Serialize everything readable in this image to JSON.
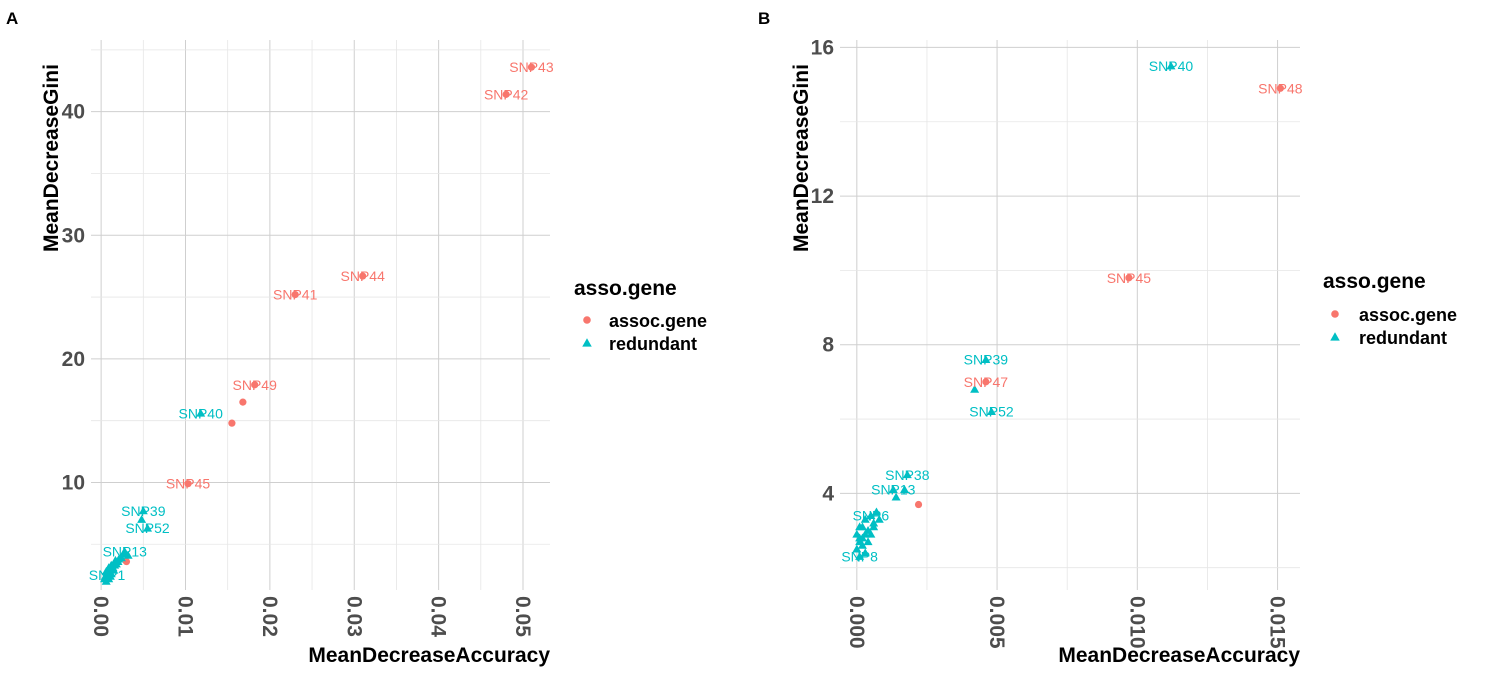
{
  "chart_data": [
    {
      "type": "scatter",
      "panel_tag": "A",
      "xlabel": "MeanDecreaseAccuracy",
      "ylabel": "MeanDecreaseGini",
      "xlim": [
        -0.0012,
        0.0532
      ],
      "ylim": [
        1.3,
        45.8
      ],
      "x_ticks": [
        0.0,
        0.01,
        0.02,
        0.03,
        0.04,
        0.05
      ],
      "x_tick_labels": [
        "0.00",
        "0.01",
        "0.02",
        "0.03",
        "0.04",
        "0.05"
      ],
      "y_ticks": [
        10,
        20,
        30,
        40
      ],
      "y_tick_labels": [
        "10",
        "20",
        "30",
        "40"
      ],
      "legend": {
        "title": "asso.gene",
        "entries": [
          {
            "label": "assoc.gene",
            "color": "#F8766D",
            "shape": "circle"
          },
          {
            "label": "redundant",
            "color": "#00BFC4",
            "shape": "triangle"
          }
        ]
      },
      "series": [
        {
          "name": "assoc.gene",
          "color": "#F8766D",
          "shape": "circle",
          "points": [
            {
              "x": 0.051,
              "y": 43.6,
              "label": "SNP43"
            },
            {
              "x": 0.048,
              "y": 41.4,
              "label": "SNP42"
            },
            {
              "x": 0.031,
              "y": 26.7,
              "label": "SNP44"
            },
            {
              "x": 0.023,
              "y": 25.2,
              "label": "SNP41"
            },
            {
              "x": 0.0182,
              "y": 17.9,
              "label": "SNP49"
            },
            {
              "x": 0.0168,
              "y": 16.5
            },
            {
              "x": 0.0155,
              "y": 14.8
            },
            {
              "x": 0.0103,
              "y": 9.9,
              "label": "SNP45"
            },
            {
              "x": 0.003,
              "y": 3.6
            },
            {
              "x": 0.001,
              "y": 2.8
            }
          ]
        },
        {
          "name": "redundant",
          "color": "#00BFC4",
          "shape": "triangle",
          "points": [
            {
              "x": 0.0118,
              "y": 15.6,
              "label": "SNP40"
            },
            {
              "x": 0.005,
              "y": 7.7,
              "label": "SNP39"
            },
            {
              "x": 0.0055,
              "y": 6.3,
              "label": "SNP52"
            },
            {
              "x": 0.0048,
              "y": 7.0
            },
            {
              "x": 0.0028,
              "y": 4.4,
              "label": "SNP13"
            },
            {
              "x": 0.0032,
              "y": 4.1
            },
            {
              "x": 0.0024,
              "y": 3.9
            },
            {
              "x": 0.002,
              "y": 3.6
            },
            {
              "x": 0.0016,
              "y": 3.3
            },
            {
              "x": 0.0014,
              "y": 3.1
            },
            {
              "x": 0.0013,
              "y": 3.0
            },
            {
              "x": 0.001,
              "y": 2.9
            },
            {
              "x": 0.0008,
              "y": 2.7
            },
            {
              "x": 0.0007,
              "y": 2.5,
              "label": "SNP1"
            },
            {
              "x": 0.0005,
              "y": 2.4
            },
            {
              "x": 0.0004,
              "y": 2.2
            },
            {
              "x": 0.0006,
              "y": 2.0
            },
            {
              "x": 0.0009,
              "y": 2.2
            },
            {
              "x": 0.0011,
              "y": 2.4
            },
            {
              "x": 0.0012,
              "y": 2.6
            },
            {
              "x": 0.0006,
              "y": 2.8
            },
            {
              "x": 0.0009,
              "y": 3.1
            },
            {
              "x": 0.0015,
              "y": 2.9
            },
            {
              "x": 0.0018,
              "y": 3.4
            },
            {
              "x": 0.0021,
              "y": 3.8
            },
            {
              "x": 0.0026,
              "y": 4.2
            },
            {
              "x": 0.0017,
              "y": 3.7
            },
            {
              "x": 0.0012,
              "y": 3.3
            }
          ]
        }
      ]
    },
    {
      "type": "scatter",
      "panel_tag": "B",
      "xlabel": "MeanDecreaseAccuracy",
      "ylabel": "MeanDecreaseGini",
      "xlim": [
        -0.0006,
        0.0158
      ],
      "ylim": [
        1.4,
        16.2
      ],
      "x_ticks": [
        0.0,
        0.005,
        0.01,
        0.015
      ],
      "x_tick_labels": [
        "0.000",
        "0.005",
        "0.010",
        "0.015"
      ],
      "y_ticks": [
        4,
        8,
        12,
        16
      ],
      "y_tick_labels": [
        "4",
        "8",
        "12",
        "16"
      ],
      "legend": {
        "title": "asso.gene",
        "entries": [
          {
            "label": "assoc.gene",
            "color": "#F8766D",
            "shape": "circle"
          },
          {
            "label": "redundant",
            "color": "#00BFC4",
            "shape": "triangle"
          }
        ]
      },
      "series": [
        {
          "name": "assoc.gene",
          "color": "#F8766D",
          "shape": "circle",
          "points": [
            {
              "x": 0.0151,
              "y": 14.9,
              "label": "SNP48"
            },
            {
              "x": 0.0097,
              "y": 9.8,
              "label": "SNP45"
            },
            {
              "x": 0.0046,
              "y": 7.0,
              "label": "SNP47"
            },
            {
              "x": 0.0022,
              "y": 3.7
            }
          ]
        },
        {
          "name": "redundant",
          "color": "#00BFC4",
          "shape": "triangle",
          "points": [
            {
              "x": 0.0112,
              "y": 15.5,
              "label": "SNP40"
            },
            {
              "x": 0.0046,
              "y": 7.6,
              "label": "SNP39"
            },
            {
              "x": 0.0048,
              "y": 6.2,
              "label": "SNP52"
            },
            {
              "x": 0.0042,
              "y": 6.8
            },
            {
              "x": 0.0018,
              "y": 4.5,
              "label": "SNP38"
            },
            {
              "x": 0.0017,
              "y": 4.1
            },
            {
              "x": 0.0013,
              "y": 4.1,
              "label": "SNP13"
            },
            {
              "x": 0.0014,
              "y": 3.9
            },
            {
              "x": 0.0005,
              "y": 3.4,
              "label": "SNP6"
            },
            {
              "x": 0.0007,
              "y": 3.5
            },
            {
              "x": 0.0008,
              "y": 3.3
            },
            {
              "x": 0.0006,
              "y": 3.1
            },
            {
              "x": 0.0004,
              "y": 3.0
            },
            {
              "x": 0.0003,
              "y": 2.9
            },
            {
              "x": 0.0002,
              "y": 2.8
            },
            {
              "x": 0.0001,
              "y": 2.7
            },
            {
              "x": 0.0,
              "y": 2.9
            },
            {
              "x": 0.0001,
              "y": 3.1
            },
            {
              "x": 0.0002,
              "y": 2.6
            },
            {
              "x": 0.0,
              "y": 2.5
            },
            {
              "x": 0.0001,
              "y": 2.3,
              "label": "SNP8"
            },
            {
              "x": 0.0003,
              "y": 2.4
            },
            {
              "x": 0.0004,
              "y": 2.7
            },
            {
              "x": 0.0005,
              "y": 2.9
            },
            {
              "x": 0.0006,
              "y": 3.2
            },
            {
              "x": 0.0002,
              "y": 3.1
            },
            {
              "x": 0.0003,
              "y": 3.3
            },
            {
              "x": 0.0001,
              "y": 2.8
            }
          ]
        }
      ]
    }
  ]
}
